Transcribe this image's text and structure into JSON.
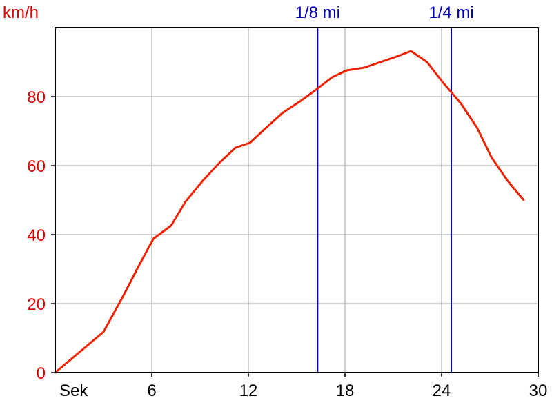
{
  "chart_data": {
    "type": "line",
    "y_unit_label": "km/h",
    "x_unit_label": "Sek",
    "xlim": [
      0,
      30
    ],
    "ylim": [
      0,
      100
    ],
    "x_ticks": [
      {
        "value": 6,
        "label": "6"
      },
      {
        "value": 12,
        "label": "12"
      },
      {
        "value": 18,
        "label": "18"
      },
      {
        "value": 24,
        "label": "24"
      },
      {
        "value": 30,
        "label": "30"
      }
    ],
    "y_ticks": [
      {
        "value": 0,
        "label": "0"
      },
      {
        "value": 20,
        "label": "20"
      },
      {
        "value": 40,
        "label": "40"
      },
      {
        "value": 60,
        "label": "60"
      },
      {
        "value": 80,
        "label": "80"
      }
    ],
    "grid": true,
    "series": [
      {
        "color": "#ee2200",
        "points": [
          [
            0.0,
            0
          ],
          [
            3.0,
            11.8
          ],
          [
            4.2,
            22
          ],
          [
            5.2,
            31
          ],
          [
            6.1,
            38.8
          ],
          [
            7.2,
            42.6
          ],
          [
            8.1,
            49.6
          ],
          [
            9.2,
            55.8
          ],
          [
            10.2,
            60.8
          ],
          [
            11.2,
            65.2
          ],
          [
            12.1,
            66.6
          ],
          [
            13.2,
            71.4
          ],
          [
            14.1,
            75.2
          ],
          [
            15.2,
            78.6
          ],
          [
            16.2,
            82
          ],
          [
            17.2,
            85.6
          ],
          [
            18.1,
            87.6
          ],
          [
            19.2,
            88.4
          ],
          [
            20.2,
            90
          ],
          [
            21.2,
            91.6
          ],
          [
            22.1,
            93.2
          ],
          [
            23.1,
            90
          ],
          [
            24.1,
            84
          ],
          [
            25.2,
            78
          ],
          [
            26.2,
            71
          ],
          [
            27.1,
            62.4
          ],
          [
            28.1,
            55.6
          ],
          [
            29.1,
            50
          ]
        ]
      }
    ],
    "markers": [
      {
        "x": 16.3,
        "label": "1/8 mi"
      },
      {
        "x": 24.6,
        "label": "1/4 mi"
      }
    ],
    "colors": {
      "axis_text_y": "#dd0000",
      "axis_text_x": "#000000",
      "marker": "#0000bb",
      "line": "#ee2200",
      "grid": "#a0a0a0",
      "frame": "#000000"
    }
  }
}
